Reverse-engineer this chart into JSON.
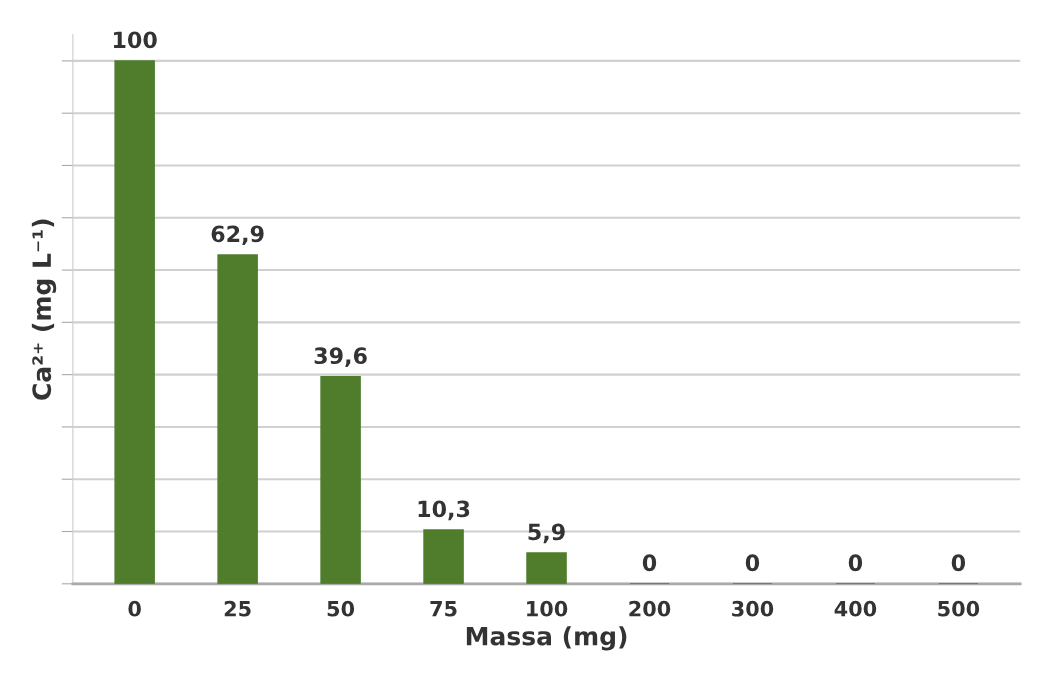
{
  "chart_data": {
    "type": "bar",
    "xlabel": "Massa (mg)",
    "ylabel": "Ca²⁺ (mg L⁻¹)",
    "categories": [
      "0",
      "25",
      "50",
      "75",
      "100",
      "200",
      "300",
      "400",
      "500"
    ],
    "values": [
      100,
      62.9,
      39.6,
      10.3,
      5.9,
      0,
      0,
      0,
      0
    ],
    "value_labels": [
      "100",
      "62,9",
      "39,6",
      "10,3",
      "5,9",
      "0",
      "0",
      "0",
      "0"
    ],
    "color": "#4f7d2b",
    "ylim": [
      0,
      105
    ],
    "yticks": [
      {
        "value": 0,
        "label": null
      },
      {
        "value": 10,
        "label": null
      },
      {
        "value": 20,
        "label": null
      },
      {
        "value": 30,
        "label": null
      },
      {
        "value": 40,
        "label": null
      },
      {
        "value": 50,
        "label": null
      },
      {
        "value": 60,
        "label": null
      },
      {
        "value": 70,
        "label": null
      },
      {
        "value": 80,
        "label": null
      },
      {
        "value": 90,
        "label": null
      },
      {
        "value": 100,
        "label": null
      }
    ],
    "tick_labels": "x",
    "grid": "y"
  }
}
